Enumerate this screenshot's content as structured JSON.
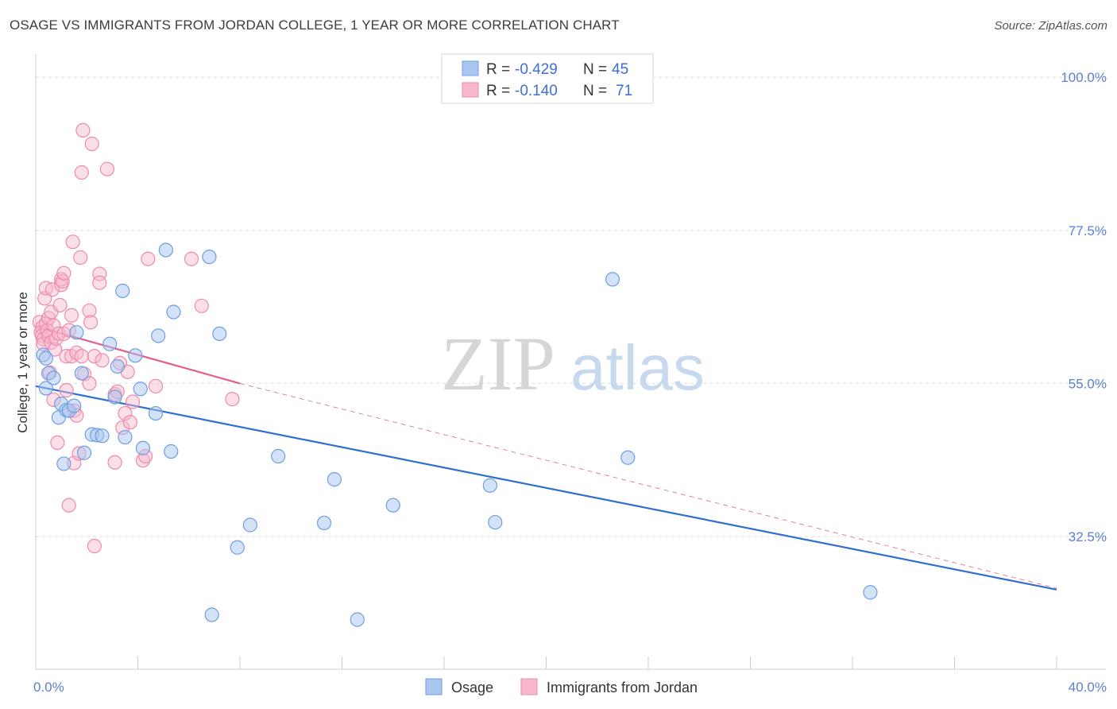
{
  "title": "OSAGE VS IMMIGRANTS FROM JORDAN COLLEGE, 1 YEAR OR MORE CORRELATION CHART",
  "source": "Source: ZipAtlas.com",
  "colors": {
    "blue_fill": "#a9c6f0",
    "blue_stroke": "#6f9ee0",
    "blue_line": "#2f6fd0",
    "pink_fill": "#f7b8cc",
    "pink_stroke": "#ee8aab",
    "pink_line": "#e0608a",
    "grid": "#dddddd",
    "tick_label": "#5b7fd1"
  },
  "legend": {
    "rows": [
      {
        "r_label": "R = ",
        "r_value": "-0.429",
        "n_label": "N = ",
        "n_value": "45"
      },
      {
        "r_label": "R = ",
        "r_value": "-0.140",
        "n_label": "N = ",
        "n_value": "71"
      }
    ]
  },
  "watermark": {
    "zip": "ZIP",
    "atlas": "atlas"
  },
  "chart_data": {
    "type": "scatter",
    "title": "OSAGE VS IMMIGRANTS FROM JORDAN COLLEGE, 1 YEAR OR MORE CORRELATION CHART",
    "xlabel": "",
    "ylabel": "College, 1 year or more",
    "xlim": [
      0,
      40
    ],
    "ylim": [
      13,
      102
    ],
    "x_tick_labels": [
      "0.0%",
      "40.0%"
    ],
    "y_ticks": [
      32.5,
      55.0,
      77.5,
      100.0
    ],
    "y_tick_labels": [
      "32.5%",
      "55.0%",
      "77.5%",
      "100.0%"
    ],
    "legend_position": "top-center",
    "series": [
      {
        "name": "Osage",
        "R": -0.429,
        "N": 45,
        "trend": {
          "x0": 0,
          "y0": 54.6,
          "x1": 40,
          "y1": 24.7
        },
        "points": [
          [
            0.3,
            59.2
          ],
          [
            0.4,
            58.7
          ],
          [
            0.4,
            54.3
          ],
          [
            0.5,
            56.5
          ],
          [
            0.7,
            55.8
          ],
          [
            0.9,
            50.0
          ],
          [
            1.0,
            52.0
          ],
          [
            1.1,
            43.2
          ],
          [
            1.2,
            51.1
          ],
          [
            1.3,
            51.0
          ],
          [
            1.5,
            51.7
          ],
          [
            1.6,
            62.5
          ],
          [
            1.8,
            56.5
          ],
          [
            1.9,
            44.8
          ],
          [
            2.2,
            47.5
          ],
          [
            2.4,
            47.4
          ],
          [
            2.6,
            47.3
          ],
          [
            2.9,
            60.8
          ],
          [
            3.1,
            53.0
          ],
          [
            3.2,
            57.5
          ],
          [
            3.4,
            68.6
          ],
          [
            3.5,
            47.1
          ],
          [
            3.9,
            59.1
          ],
          [
            4.1,
            54.2
          ],
          [
            4.2,
            45.5
          ],
          [
            4.7,
            50.6
          ],
          [
            4.8,
            62.0
          ],
          [
            5.1,
            74.6
          ],
          [
            5.3,
            45.0
          ],
          [
            5.4,
            65.5
          ],
          [
            6.9,
            21.0
          ],
          [
            6.8,
            73.6
          ],
          [
            7.2,
            62.3
          ],
          [
            7.9,
            30.9
          ],
          [
            8.4,
            34.2
          ],
          [
            9.5,
            44.3
          ],
          [
            11.3,
            34.5
          ],
          [
            11.7,
            40.9
          ],
          [
            12.6,
            20.3
          ],
          [
            14.0,
            37.1
          ],
          [
            17.8,
            40.0
          ],
          [
            18.0,
            34.6
          ],
          [
            22.6,
            70.3
          ],
          [
            23.2,
            44.1
          ],
          [
            32.7,
            24.3
          ]
        ]
      },
      {
        "name": "Immigrants from Jordan",
        "R": -0.14,
        "N": 71,
        "trend": {
          "x0": 0,
          "y0": 63.4,
          "x1": 8.0,
          "y1": 55.0,
          "dashed_to": {
            "x": 40,
            "y": 24.9
          }
        },
        "points": [
          [
            0.15,
            64.0
          ],
          [
            0.2,
            62.5
          ],
          [
            0.25,
            63.2
          ],
          [
            0.25,
            62.0
          ],
          [
            0.3,
            61.5
          ],
          [
            0.3,
            60.8
          ],
          [
            0.35,
            67.5
          ],
          [
            0.4,
            69.0
          ],
          [
            0.4,
            63.8
          ],
          [
            0.45,
            62.8
          ],
          [
            0.5,
            62.0
          ],
          [
            0.5,
            64.6
          ],
          [
            0.55,
            56.6
          ],
          [
            0.6,
            61.0
          ],
          [
            0.6,
            65.5
          ],
          [
            0.65,
            68.8
          ],
          [
            0.7,
            63.5
          ],
          [
            0.7,
            52.6
          ],
          [
            0.75,
            60.0
          ],
          [
            0.8,
            61.6
          ],
          [
            0.85,
            46.3
          ],
          [
            0.9,
            62.3
          ],
          [
            0.95,
            66.5
          ],
          [
            1.0,
            69.5
          ],
          [
            1.0,
            70.3
          ],
          [
            1.05,
            70.0
          ],
          [
            1.1,
            71.2
          ],
          [
            1.1,
            62.3
          ],
          [
            1.2,
            59.0
          ],
          [
            1.2,
            54.0
          ],
          [
            1.3,
            62.8
          ],
          [
            1.3,
            37.1
          ],
          [
            1.4,
            59.0
          ],
          [
            1.4,
            65.0
          ],
          [
            1.45,
            75.8
          ],
          [
            1.5,
            43.3
          ],
          [
            1.5,
            51.0
          ],
          [
            1.6,
            50.3
          ],
          [
            1.6,
            59.5
          ],
          [
            1.7,
            44.7
          ],
          [
            1.75,
            73.5
          ],
          [
            1.8,
            59.0
          ],
          [
            1.8,
            86.0
          ],
          [
            1.85,
            92.2
          ],
          [
            1.9,
            56.4
          ],
          [
            2.1,
            55.0
          ],
          [
            2.1,
            65.7
          ],
          [
            2.15,
            64.0
          ],
          [
            2.2,
            90.2
          ],
          [
            2.3,
            59.0
          ],
          [
            2.3,
            31.1
          ],
          [
            2.5,
            71.1
          ],
          [
            2.5,
            69.8
          ],
          [
            2.6,
            58.4
          ],
          [
            2.8,
            86.5
          ],
          [
            3.1,
            43.4
          ],
          [
            3.1,
            53.4
          ],
          [
            3.2,
            53.8
          ],
          [
            3.3,
            58.0
          ],
          [
            3.4,
            48.5
          ],
          [
            3.5,
            50.6
          ],
          [
            3.6,
            56.7
          ],
          [
            3.7,
            49.3
          ],
          [
            3.8,
            52.3
          ],
          [
            4.2,
            43.7
          ],
          [
            4.3,
            44.3
          ],
          [
            4.4,
            73.3
          ],
          [
            4.7,
            54.6
          ],
          [
            6.1,
            73.3
          ],
          [
            6.5,
            66.4
          ],
          [
            7.7,
            52.7
          ]
        ]
      }
    ]
  },
  "bottom_legend": [
    {
      "label": "Osage"
    },
    {
      "label": "Immigrants from Jordan"
    }
  ]
}
